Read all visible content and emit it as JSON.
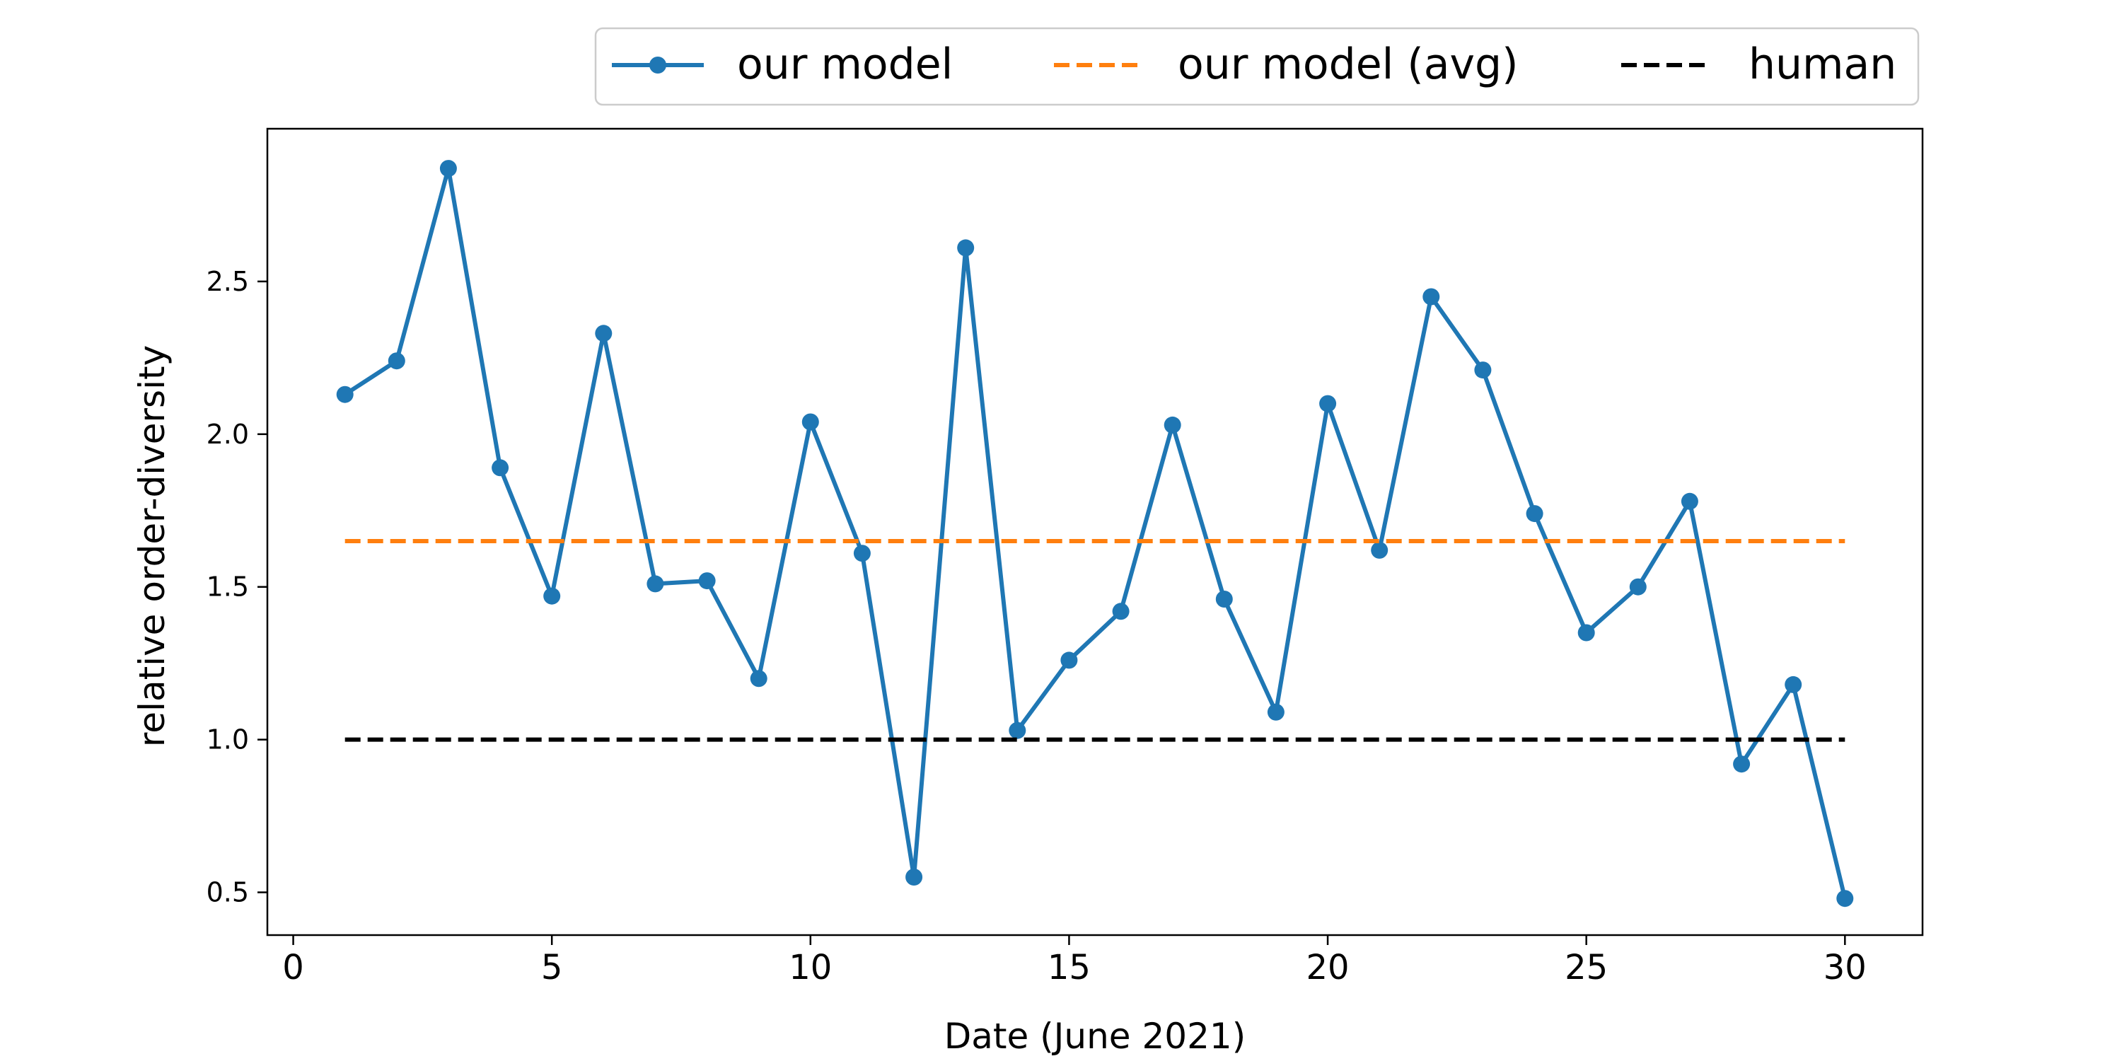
{
  "chart_data": {
    "type": "line",
    "title": "",
    "xlabel": "Date (June 2021)",
    "ylabel": "relative order-diversity",
    "xlim": [
      -0.5,
      31.5
    ],
    "ylim": [
      0.36,
      3.0
    ],
    "xticks": [
      0,
      5,
      10,
      15,
      20,
      25,
      30
    ],
    "xtick_labels": [
      "0",
      "5",
      "10",
      "15",
      "20",
      "25",
      "30"
    ],
    "yticks": [
      0.5,
      1.0,
      1.5,
      2.0,
      2.5
    ],
    "ytick_labels": [
      "0.5",
      "1.0",
      "1.5",
      "2.0",
      "2.5"
    ],
    "grid": false,
    "legend_position": "top-right, above plot",
    "series": [
      {
        "name": "our model",
        "style": "solid line with circle markers",
        "color": "#1f77b4",
        "x": [
          1,
          2,
          3,
          4,
          5,
          6,
          7,
          8,
          9,
          10,
          11,
          12,
          13,
          14,
          15,
          16,
          17,
          18,
          19,
          20,
          21,
          22,
          23,
          24,
          25,
          26,
          27,
          28,
          29,
          30
        ],
        "y": [
          2.13,
          2.24,
          2.87,
          1.89,
          1.47,
          2.33,
          1.51,
          1.52,
          1.2,
          2.04,
          1.61,
          0.55,
          2.61,
          1.03,
          1.26,
          1.42,
          2.03,
          1.46,
          1.09,
          2.1,
          1.62,
          2.45,
          2.21,
          1.74,
          1.35,
          1.5,
          1.78,
          0.92,
          1.18,
          0.48
        ]
      },
      {
        "name": "our model (avg)",
        "style": "dashed",
        "color": "#ff7f0e",
        "x": [
          1,
          30
        ],
        "y": [
          1.65,
          1.65
        ]
      },
      {
        "name": "human",
        "style": "dashed",
        "color": "#000000",
        "x": [
          1,
          30
        ],
        "y": [
          1.0,
          1.0
        ]
      }
    ]
  }
}
